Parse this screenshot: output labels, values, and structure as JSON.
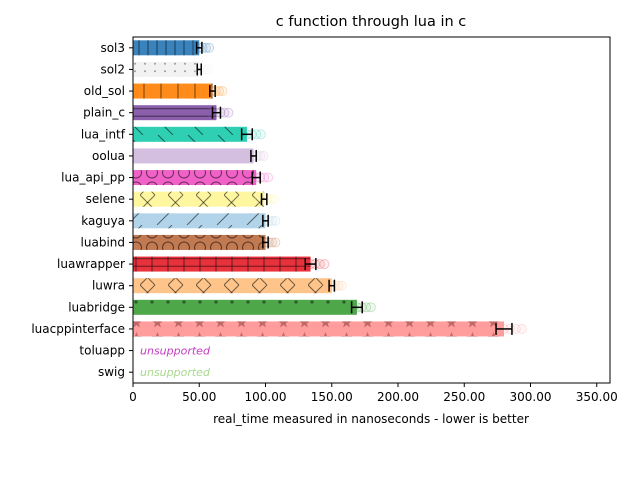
{
  "chart_data": {
    "type": "bar",
    "orientation": "horizontal",
    "title": "c function through lua in c",
    "xlabel": "real_time measured in nanoseconds - lower is better",
    "xlim": [
      0,
      360
    ],
    "xticks": [
      0,
      50,
      100,
      150,
      200,
      250,
      300,
      350
    ],
    "xtick_labels": [
      "0",
      "50.00",
      "100.00",
      "150.00",
      "200.00",
      "250.00",
      "300.00",
      "350.00"
    ],
    "grid": false,
    "unsupported_label": "unsupported",
    "bars": [
      {
        "name": "sol3",
        "value": 50,
        "error": 2,
        "color": "#3a83bd",
        "pattern": "vlines-dense"
      },
      {
        "name": "sol2",
        "value": 50,
        "error": 1.5,
        "color": "#f2f2f2",
        "pattern": "dots"
      },
      {
        "name": "old_sol",
        "value": 60,
        "error": 2,
        "color": "#ff8c1a",
        "pattern": "vlines"
      },
      {
        "name": "plain_c",
        "value": 63,
        "error": 3,
        "color": "#8b5fac",
        "pattern": "hlines"
      },
      {
        "name": "lua_intf",
        "value": 86,
        "error": 4,
        "color": "#2ecfb3",
        "pattern": "backslash"
      },
      {
        "name": "oolua",
        "value": 91,
        "error": 2,
        "color": "#d5bfe0",
        "pattern": "none"
      },
      {
        "name": "lua_api_pp",
        "value": 93,
        "error": 3,
        "color": "#f062c8",
        "pattern": "circles"
      },
      {
        "name": "selene",
        "value": 99,
        "error": 2,
        "color": "#fff7a0",
        "pattern": "cross"
      },
      {
        "name": "kaguya",
        "value": 100,
        "error": 2,
        "color": "#b2d4ea",
        "pattern": "slash"
      },
      {
        "name": "luabind",
        "value": 100,
        "error": 2,
        "color": "#c27a52",
        "pattern": "circles"
      },
      {
        "name": "luawrapper",
        "value": 134,
        "error": 4,
        "color": "#e8323c",
        "pattern": "grid"
      },
      {
        "name": "luwra",
        "value": 150,
        "error": 2,
        "color": "#ffc48a",
        "pattern": "cross"
      },
      {
        "name": "luabridge",
        "value": 169,
        "error": 4,
        "color": "#4ea84a",
        "pattern": "dots-dark"
      },
      {
        "name": "luacppinterface",
        "value": 280,
        "error": 6,
        "color": "#ff9d9d",
        "pattern": "stars"
      },
      {
        "name": "toluapp",
        "value": null,
        "error": null,
        "color": "#c43bc4",
        "pattern": "none"
      },
      {
        "name": "swig",
        "value": null,
        "error": null,
        "color": "#a8d98c",
        "pattern": "none"
      }
    ]
  }
}
